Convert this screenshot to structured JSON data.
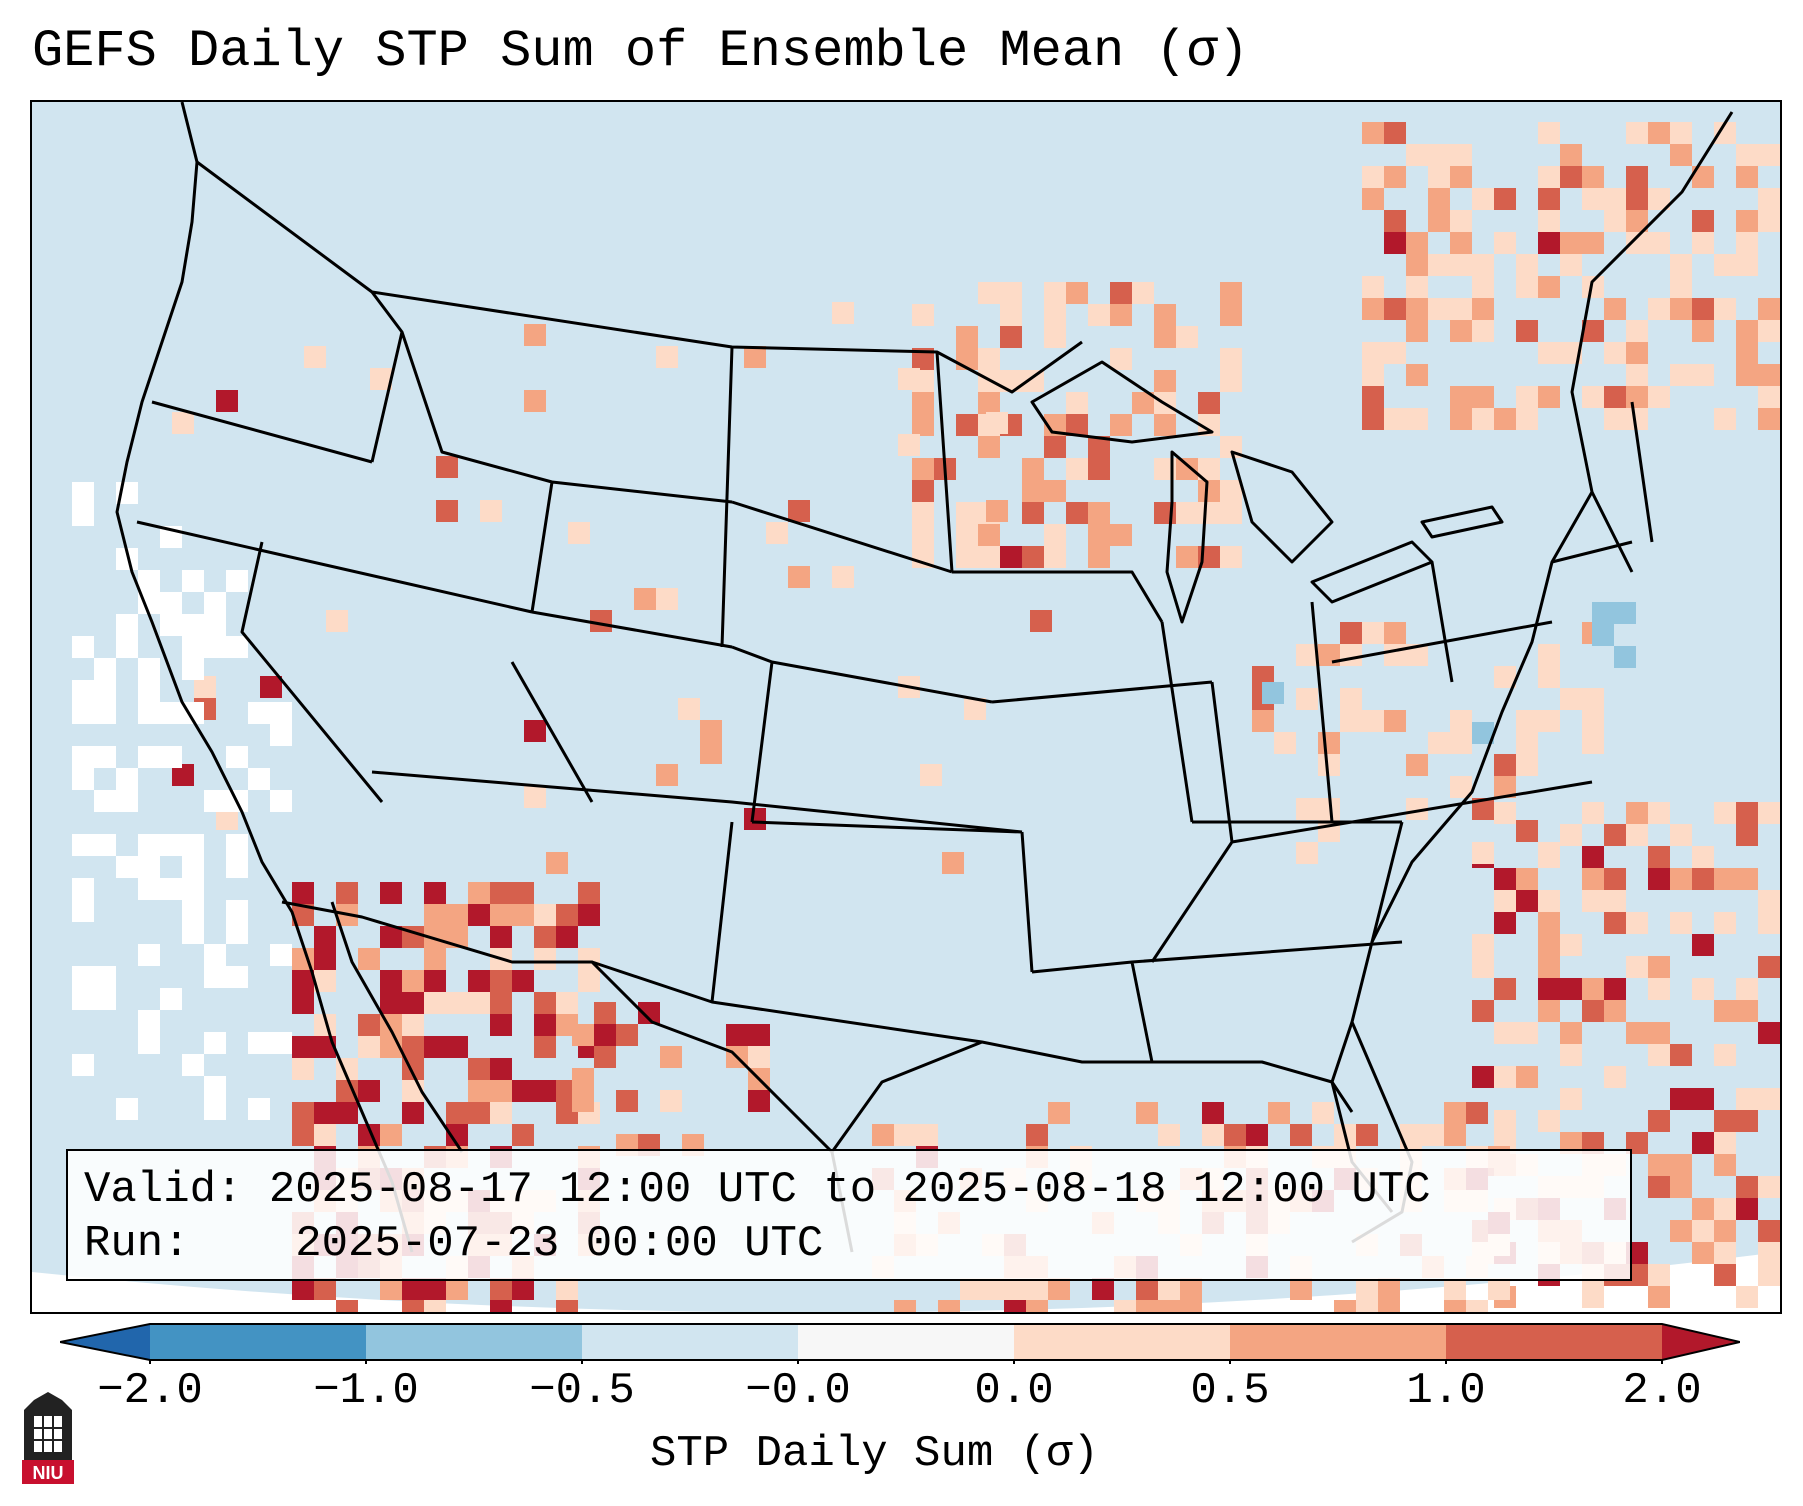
{
  "title": "GEFS Daily STP Sum of Ensemble Mean (σ)",
  "info": {
    "valid_label": "Valid:",
    "valid_value": "2025-08-17 12:00 UTC to 2025-08-18 12:00 UTC",
    "run_label": "Run:",
    "run_value": "2025-07-23 00:00 UTC"
  },
  "colorbar": {
    "label": "STP Daily Sum (σ)",
    "ticks": [
      "−2.0",
      "−1.0",
      "−0.5",
      "−0.0",
      "0.0",
      "0.5",
      "1.0",
      "2.0"
    ],
    "colors": [
      "#2166ac",
      "#4393c3",
      "#92c5de",
      "#d1e5f0",
      "#f7f7f7",
      "#fddbc7",
      "#f4a582",
      "#d6604d",
      "#b2182b"
    ]
  },
  "logo": {
    "text": "NIU",
    "color": "#c8102e"
  },
  "map": {
    "background_color": "#d1e5f0",
    "outside_color": "#ffffff",
    "anomaly_colors": {
      "weak_positive": "#fddbc7",
      "moderate_positive": "#f4a582",
      "strong_positive": "#d6604d",
      "extreme_positive": "#b2182b",
      "slight_negative": "#92c5de",
      "neutral": "#f7f7f7"
    }
  }
}
